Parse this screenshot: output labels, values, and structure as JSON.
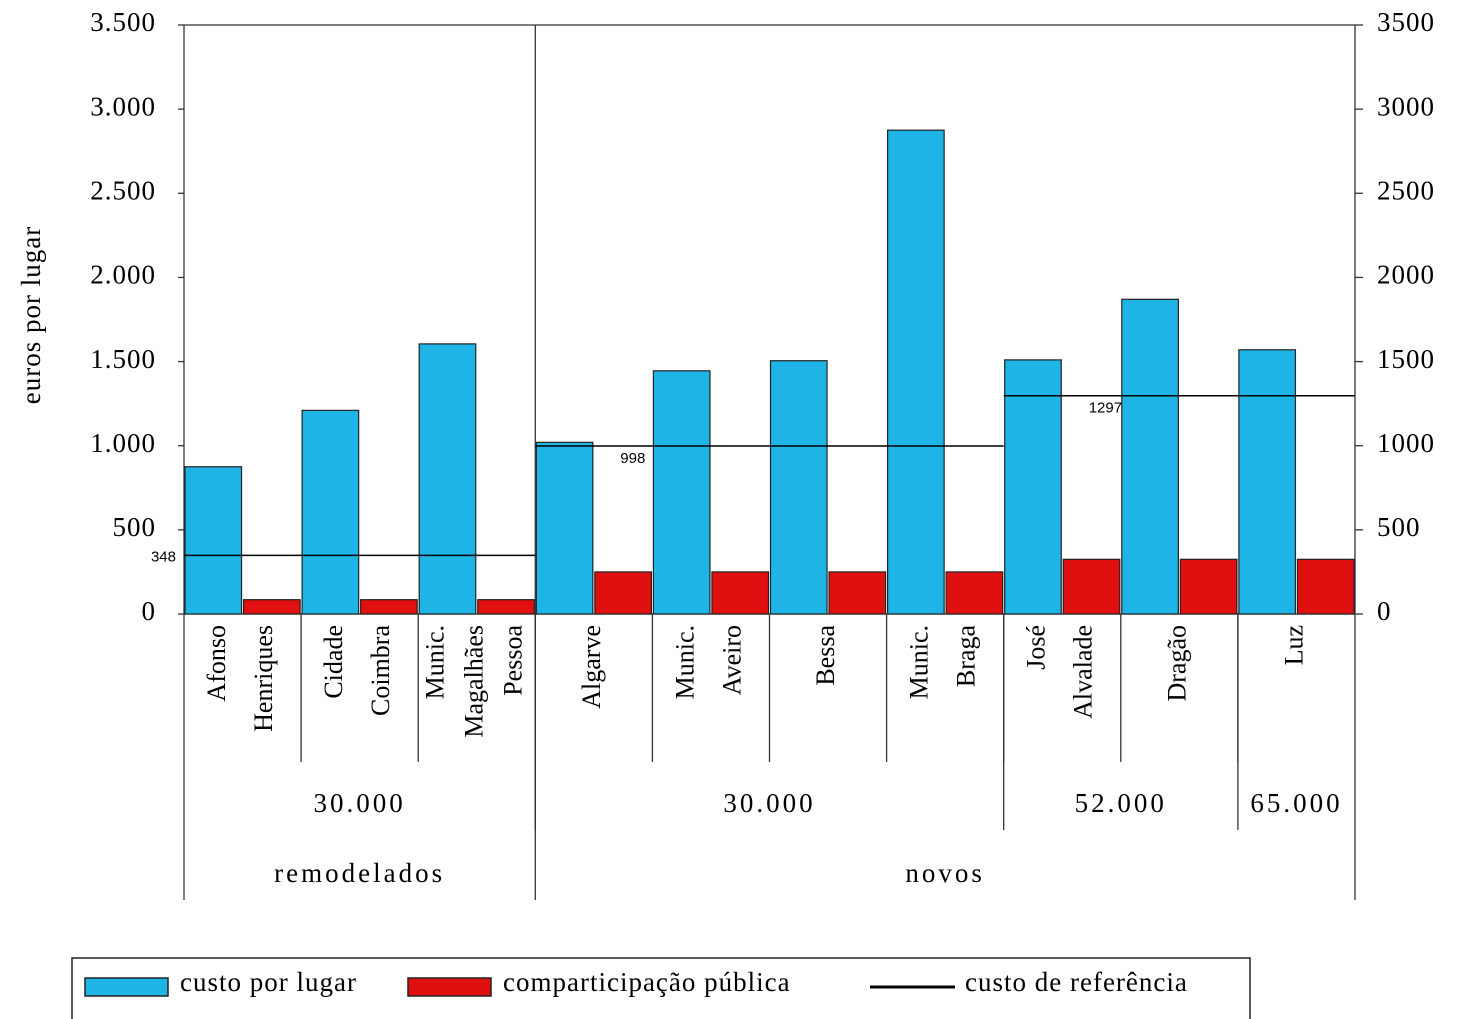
{
  "chart_data": {
    "type": "bar",
    "y_label": "euros por lugar",
    "categories": [
      [
        "Afonso",
        "Henriques"
      ],
      [
        "Cidade",
        "Coimbra"
      ],
      [
        "Munic.",
        "Magalhães",
        "Pessoa"
      ],
      [
        "Algarve"
      ],
      [
        "Munic.",
        "Aveiro"
      ],
      [
        "Bessa"
      ],
      [
        "Munic.",
        "Braga"
      ],
      [
        "José",
        "Alvalade"
      ],
      [
        "Dragão"
      ],
      [
        "Luz"
      ]
    ],
    "series": [
      {
        "name": "custo por lugar",
        "color": "#1eb4e6",
        "values": [
          875,
          1210,
          1605,
          1020,
          1445,
          1505,
          2875,
          1510,
          1870,
          1570
        ]
      },
      {
        "name": "comparticipação pública",
        "color": "#e01010",
        "values": [
          85,
          85,
          85,
          250,
          250,
          250,
          250,
          325,
          325,
          325
        ]
      }
    ],
    "reference": {
      "name": "custo de referência",
      "color": "#000000",
      "segments": [
        {
          "value": 348,
          "count": 3
        },
        {
          "value": 998,
          "count": 4
        },
        {
          "value": 1297,
          "count": 3
        }
      ]
    },
    "capacity_groups": [
      {
        "label": "30.000",
        "count": 3
      },
      {
        "label": "30.000",
        "count": 4
      },
      {
        "label": "52.000",
        "count": 2
      },
      {
        "label": "65.000",
        "count": 1
      }
    ],
    "type_groups": [
      {
        "label": "remodelados",
        "count": 3
      },
      {
        "label": "novos",
        "count": 7
      }
    ],
    "ylim": [
      0,
      3500
    ],
    "yticks": [
      {
        "value": 0,
        "label": "0"
      },
      {
        "value": 500,
        "label": "500"
      },
      {
        "value": 1000,
        "label": "1.000"
      },
      {
        "value": 1500,
        "label": "1.500"
      },
      {
        "value": 2000,
        "label": "2.000"
      },
      {
        "value": 2500,
        "label": "2.500"
      },
      {
        "value": 3000,
        "label": "3.000"
      },
      {
        "value": 3500,
        "label": "3.500"
      }
    ],
    "y2lim": [
      0,
      3500
    ],
    "y2ticks": [
      0,
      500,
      1000,
      1500,
      2000,
      2500,
      3000,
      3500
    ]
  }
}
